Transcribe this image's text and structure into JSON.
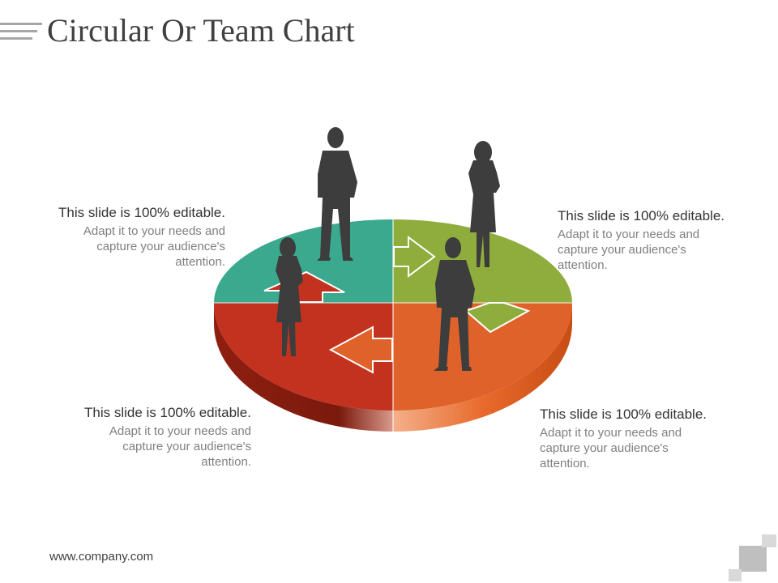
{
  "slide": {
    "title": "Circular Or Team Chart",
    "footer": "www.company.com"
  },
  "callouts": [
    {
      "heading": "This slide is 100% editable.",
      "body": "Adapt it to your needs and capture your audience's attention."
    },
    {
      "heading": "This slide is 100% editable.",
      "body": "Adapt it to your needs and capture your audience's attention."
    },
    {
      "heading": "This slide is 100% editable.",
      "body": "Adapt it to your needs and capture your audience's attention."
    },
    {
      "heading": "This slide is 100% editable.",
      "body": "Adapt it to your needs and capture your audience's attention."
    }
  ],
  "colors": {
    "teal": "#3aa98d",
    "green": "#8fad3c",
    "red": "#c3311f",
    "orange": "#e0622b",
    "silhouette": "#3d3d3d"
  },
  "icons": [
    "businessman-silhouette",
    "businesswoman-silhouette",
    "arrow-right",
    "arrow-down",
    "arrow-left",
    "arrow-up"
  ]
}
